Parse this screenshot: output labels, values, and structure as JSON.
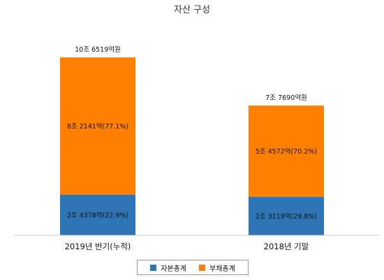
{
  "chart_data": {
    "type": "bar",
    "stacked": true,
    "title": "자산 구성",
    "categories": [
      "2019년 반기(누적)",
      "2018년 기말"
    ],
    "series": [
      {
        "name": "자본총계",
        "color": "#2e75b6",
        "values": [
          24378,
          23119
        ],
        "labels": [
          "2조 4378억(22.9%)",
          "2조 3119억(29.8%)"
        ]
      },
      {
        "name": "부채총계",
        "color": "#ff8000",
        "values": [
          82141,
          54572
        ],
        "labels": [
          "8조 2141억(77.1%)",
          "5조 4572억(70.2%)"
        ]
      }
    ],
    "totals": [
      106519,
      77690
    ],
    "total_labels": [
      "10조 6519억원",
      "7조 7690억원"
    ],
    "unit": "억원",
    "ylim": [
      0,
      125000
    ],
    "grid": false,
    "legend_position": "bottom"
  }
}
